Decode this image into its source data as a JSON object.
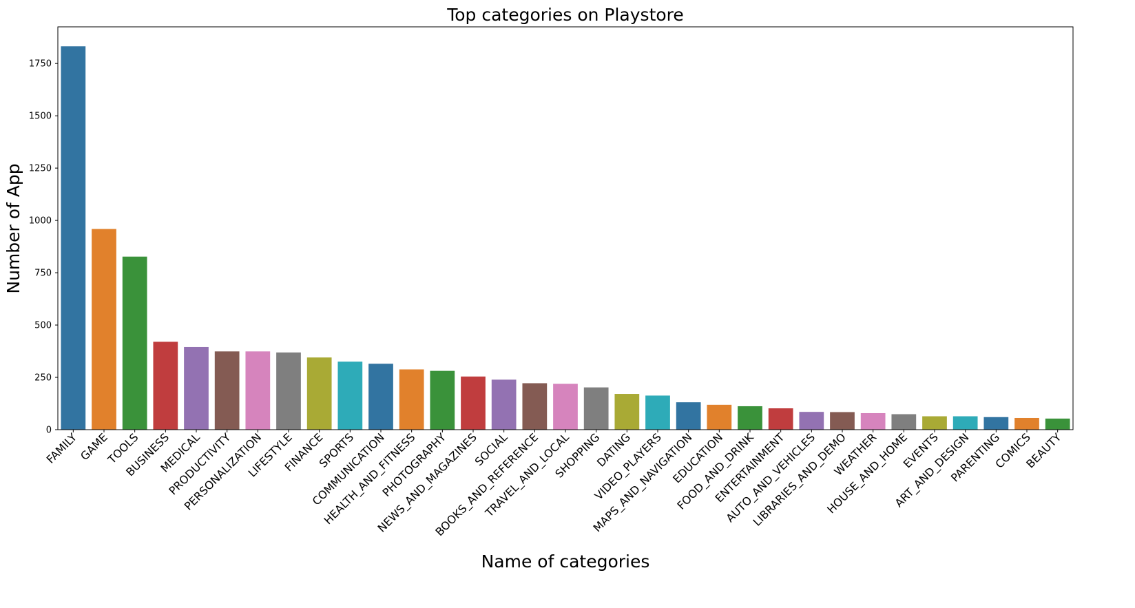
{
  "chart_data": {
    "type": "bar",
    "title": "Top categories on Playstore",
    "xlabel": "Name of categories",
    "ylabel": "Number of App",
    "ylim": [
      0,
      1925
    ],
    "yticks": [
      0,
      250,
      500,
      750,
      1000,
      1250,
      1500,
      1750
    ],
    "grid": false,
    "legend": "none",
    "categories": [
      "FAMILY",
      "GAME",
      "TOOLS",
      "BUSINESS",
      "MEDICAL",
      "PRODUCTIVITY",
      "PERSONALIZATION",
      "LIFESTYLE",
      "FINANCE",
      "SPORTS",
      "COMMUNICATION",
      "HEALTH_AND_FITNESS",
      "PHOTOGRAPHY",
      "NEWS_AND_MAGAZINES",
      "SOCIAL",
      "BOOKS_AND_REFERENCE",
      "TRAVEL_AND_LOCAL",
      "SHOPPING",
      "DATING",
      "VIDEO_PLAYERS",
      "MAPS_AND_NAVIGATION",
      "EDUCATION",
      "FOOD_AND_DRINK",
      "ENTERTAINMENT",
      "AUTO_AND_VEHICLES",
      "LIBRARIES_AND_DEMO",
      "WEATHER",
      "HOUSE_AND_HOME",
      "EVENTS",
      "ART_AND_DESIGN",
      "PARENTING",
      "COMICS",
      "BEAUTY"
    ],
    "values": [
      1832,
      959,
      827,
      420,
      395,
      374,
      374,
      369,
      345,
      325,
      315,
      288,
      281,
      254,
      239,
      222,
      219,
      202,
      171,
      163,
      131,
      119,
      112,
      102,
      85,
      84,
      79,
      74,
      64,
      64,
      60,
      56,
      53
    ],
    "colors": [
      "#3274a1",
      "#e1812c",
      "#3a923a",
      "#c03d3e",
      "#9372b2",
      "#845b53",
      "#d684bd",
      "#7f7f7f",
      "#a9aa35",
      "#2eabb8"
    ]
  }
}
